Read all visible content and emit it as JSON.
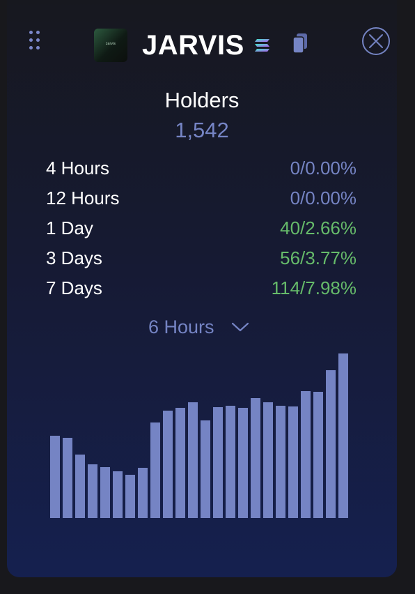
{
  "token": {
    "name": "JARVIS",
    "logo_text": "Jarvis",
    "logo_icon": "jarvis-logo",
    "chain_icon": "solana-icon",
    "copy_icon": "copy-icon",
    "close_icon": "close-circle-icon"
  },
  "holders": {
    "title": "Holders",
    "count": "1,542"
  },
  "stats": [
    {
      "label": "4 Hours",
      "value": "0/0.00%",
      "trend": "neutral"
    },
    {
      "label": "12 Hours",
      "value": "0/0.00%",
      "trend": "neutral"
    },
    {
      "label": "1 Day",
      "value": "40/2.66%",
      "trend": "positive"
    },
    {
      "label": "3 Days",
      "value": "56/3.77%",
      "trend": "positive"
    },
    {
      "label": "7 Days",
      "value": "114/7.98%",
      "trend": "positive"
    }
  ],
  "range_selector": {
    "selected": "6 Hours"
  },
  "colors": {
    "accent": "#7584c4",
    "positive": "#66bb6a",
    "bar": "#7584c4",
    "background_top": "#17181f",
    "background_bottom": "#15204f"
  },
  "chart_data": {
    "type": "bar",
    "values": [
      118,
      115,
      91,
      77,
      73,
      67,
      62,
      72,
      137,
      154,
      158,
      166,
      140,
      159,
      161,
      158,
      172,
      166,
      161,
      160,
      182,
      181,
      212,
      236
    ],
    "ylim": [
      0,
      240
    ],
    "grid": false,
    "axes": false
  }
}
